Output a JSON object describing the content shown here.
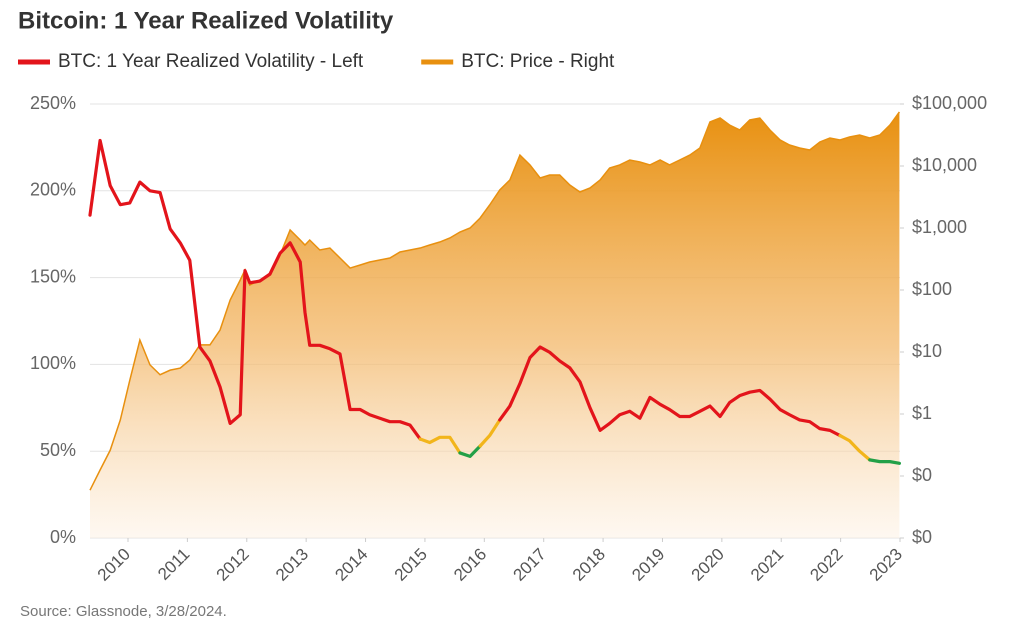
{
  "chart_data": {
    "type": "line",
    "title": "Bitcoin: 1 Year Realized Volatility",
    "source": "Source: Glassnode, 3/28/2024.",
    "x": [
      2009.36,
      2009.53,
      2009.7,
      2009.87,
      2010.03,
      2010.2,
      2010.37,
      2010.54,
      2010.71,
      2010.88,
      2011.04,
      2011.21,
      2011.38,
      2011.55,
      2011.72,
      2011.89,
      2011.97,
      2012.05,
      2012.22,
      2012.39,
      2012.56,
      2012.73,
      2012.9,
      2012.98,
      2013.06,
      2013.23,
      2013.4,
      2013.57,
      2013.74,
      2013.91,
      2014.07,
      2014.24,
      2014.41,
      2014.58,
      2014.75,
      2014.92,
      2015.08,
      2015.25,
      2015.42,
      2015.59,
      2015.76,
      2015.93,
      2016.09,
      2016.26,
      2016.43,
      2016.6,
      2016.77,
      2016.94,
      2017.1,
      2017.27,
      2017.44,
      2017.61,
      2017.78,
      2017.95,
      2018.11,
      2018.28,
      2018.45,
      2018.62,
      2018.79,
      2018.96,
      2019.12,
      2019.29,
      2019.46,
      2019.63,
      2019.8,
      2019.97,
      2020.13,
      2020.3,
      2020.47,
      2020.64,
      2020.81,
      2020.98,
      2021.14,
      2021.31,
      2021.48,
      2021.65,
      2021.82,
      2021.99,
      2022.15,
      2022.32,
      2022.49,
      2022.66,
      2022.83,
      2022.99
    ],
    "xlim": [
      2009.36,
      2023.0
    ],
    "xticks": [
      2010,
      2011,
      2012,
      2013,
      2014,
      2015,
      2016,
      2017,
      2018,
      2019,
      2020,
      2021,
      2022,
      2023
    ],
    "ylim": [
      0,
      250
    ],
    "yticks": [
      {
        "value": 0,
        "label": "0%"
      },
      {
        "value": 50,
        "label": "50%"
      },
      {
        "value": 100,
        "label": "100%"
      },
      {
        "value": 150,
        "label": "150%"
      },
      {
        "value": 200,
        "label": "200%"
      },
      {
        "value": 250,
        "label": "250%"
      }
    ],
    "y2lim": [
      0.01,
      100000
    ],
    "y2_log": true,
    "y2ticks": [
      {
        "value": 0.01,
        "label": "$0"
      },
      {
        "value": 0.1,
        "label": "$0"
      },
      {
        "value": 1,
        "label": "$1"
      },
      {
        "value": 10,
        "label": "$10"
      },
      {
        "value": 100,
        "label": "$100"
      },
      {
        "value": 1000,
        "label": "$1,000"
      },
      {
        "value": 10000,
        "label": "$10,000"
      },
      {
        "value": 100000,
        "label": "$100,000"
      }
    ],
    "grid": true,
    "series": [
      {
        "name": "BTC: 1 Year Realized Volatility - Left",
        "color": "#e3141b",
        "color_scale": [
          {
            "min": 60,
            "color": "#e3141b"
          },
          {
            "min": 50,
            "color": "#f2b51b"
          },
          {
            "min": 0,
            "color": "#23a047"
          }
        ],
        "values": [
          186,
          229,
          203,
          192,
          193,
          205,
          200,
          199,
          178,
          170,
          160,
          110,
          102,
          87,
          66,
          71,
          154,
          147,
          148,
          152,
          164,
          170,
          159,
          130,
          111,
          111,
          109,
          106,
          74,
          74,
          71,
          69,
          67,
          67,
          65,
          57,
          55,
          58,
          58,
          49,
          47,
          53,
          59,
          68,
          76,
          89,
          104,
          110,
          107,
          102,
          98,
          90,
          75,
          62,
          66,
          71,
          73,
          69,
          81,
          77,
          74,
          70,
          70,
          73,
          76,
          70,
          78,
          82,
          84,
          85,
          80,
          74,
          71,
          68,
          67,
          63,
          62,
          59,
          56,
          50,
          45,
          44,
          44,
          43
        ]
      },
      {
        "name": "BTC: Price - Right",
        "color": "#e8900f",
        "axis": "y2",
        "fill": "area",
        "values": [
          0.059,
          0.125,
          0.26,
          0.8,
          3.5,
          15.6,
          6.2,
          4.3,
          5.1,
          5.5,
          7.4,
          13,
          13,
          22.6,
          69,
          145,
          210,
          120,
          145,
          175,
          367,
          930,
          640,
          532,
          640,
          442,
          475,
          328,
          226,
          253,
          283,
          305,
          328,
          410,
          442,
          475,
          532,
          594,
          690,
          861,
          1000,
          1450,
          2350,
          4100,
          5940,
          15000,
          10400,
          6400,
          7160,
          7160,
          4940,
          3810,
          4420,
          5940,
          9290,
          10400,
          12500,
          11600,
          10400,
          12500,
          10400,
          12500,
          15000,
          19500,
          51300,
          59400,
          45800,
          38100,
          55200,
          59400,
          38100,
          26300,
          21800,
          19500,
          18100,
          24400,
          28300,
          26300,
          29400,
          31600,
          28300,
          31600,
          45800,
          74300
        ]
      }
    ]
  }
}
